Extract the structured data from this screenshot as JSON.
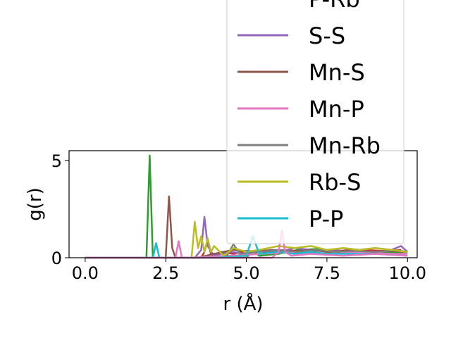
{
  "chart_data": {
    "type": "line",
    "xlabel": "r (Å)",
    "ylabel": "g(r)",
    "xlim": [
      -0.5,
      10.3
    ],
    "ylim": [
      0,
      5.5
    ],
    "xticks": [
      0.0,
      2.5,
      5.0,
      7.5,
      10.0
    ],
    "xtick_labels": [
      "0.0",
      "2.5",
      "5.0",
      "7.5",
      "10.0"
    ],
    "yticks": [
      0,
      5
    ],
    "ytick_labels": [
      "0",
      "5"
    ],
    "legend_position": "upper-right, extending above plot",
    "series": [
      {
        "name": "",
        "color": "#2ca02c",
        "x": [
          0,
          1.8,
          1.9,
          2.0,
          2.1,
          2.2,
          3.0,
          5.0,
          5.2,
          5.4,
          6.0,
          6.6,
          7.2,
          7.6,
          8.2,
          8.8,
          9.4,
          10.0
        ],
        "y": [
          0,
          0,
          0,
          5.25,
          0,
          0,
          0,
          0,
          0.35,
          0.1,
          0.2,
          0.4,
          0.45,
          0.2,
          0.4,
          0.3,
          0.3,
          0.2
        ]
      },
      {
        "name": "P-Rb",
        "color": "#d62728",
        "x": [
          0,
          3.6,
          3.7,
          3.8,
          3.9,
          4.0,
          4.2,
          4.6,
          5.0,
          5.6,
          6.2,
          6.8,
          7.4,
          8.0,
          8.6,
          9.2,
          9.8
        ],
        "y": [
          0,
          0,
          0.3,
          0.9,
          0.2,
          0.1,
          0.3,
          0.2,
          0.35,
          0.3,
          0.4,
          0.3,
          0.4,
          0.3,
          0.4,
          0.35,
          0.4
        ]
      },
      {
        "name": "S-S",
        "color": "#9467bd",
        "x": [
          0,
          3.4,
          3.6,
          3.7,
          3.8,
          4.0,
          4.5,
          5.0,
          5.5,
          6.0,
          6.5,
          7.0,
          7.5,
          8.0,
          8.5,
          9.0,
          9.5,
          9.8,
          10.0
        ],
        "y": [
          0,
          0,
          0.4,
          2.1,
          0.6,
          0.1,
          0.3,
          0.2,
          0.4,
          0.3,
          0.5,
          0.4,
          0.3,
          0.5,
          0.4,
          0.5,
          0.4,
          0.6,
          0.3
        ]
      },
      {
        "name": "Mn-S",
        "color": "#8c564b",
        "x": [
          0,
          2.5,
          2.6,
          2.7,
          2.8,
          3.5,
          4.0,
          4.6,
          5.2,
          5.8,
          6.4,
          7.0,
          7.6,
          8.2,
          8.8,
          9.4,
          10.0
        ],
        "y": [
          0,
          0,
          3.15,
          0.5,
          0,
          0,
          0.2,
          0.4,
          0.3,
          0.4,
          0.3,
          0.4,
          0.3,
          0.4,
          0.3,
          0.35,
          0.3
        ]
      },
      {
        "name": "Mn-P",
        "color": "#e377c2",
        "x": [
          0,
          2.8,
          2.9,
          3.0,
          3.2,
          4.5,
          5.5,
          6.5,
          7.5,
          8.5,
          9.5,
          10.0
        ],
        "y": [
          0,
          0,
          0.85,
          0,
          0,
          0.1,
          0.2,
          0.3,
          0.2,
          0.3,
          0.2,
          0.2
        ]
      },
      {
        "name": "Mn-Rb",
        "color": "#7f7f7f",
        "x": [
          0,
          4.2,
          4.4,
          4.6,
          4.8,
          5.4,
          6.0,
          6.6,
          7.2,
          7.8,
          8.4,
          9.0,
          9.6,
          10.0
        ],
        "y": [
          0,
          0,
          0.1,
          0.7,
          0.2,
          0.3,
          0.4,
          0.3,
          0.4,
          0.3,
          0.35,
          0.3,
          0.4,
          0.3
        ]
      },
      {
        "name": "Rb-S",
        "color": "#bcbd22",
        "x": [
          0,
          3.3,
          3.4,
          3.5,
          3.6,
          3.7,
          3.8,
          3.9,
          4.0,
          4.3,
          4.6,
          5.0,
          5.4,
          6.0,
          6.5,
          7.0,
          7.5,
          8.0,
          8.5,
          9.0,
          9.5,
          10.0
        ],
        "y": [
          0,
          0,
          1.85,
          0.5,
          1.1,
          0.3,
          1.0,
          0.3,
          0.6,
          0.1,
          0.5,
          0.3,
          0.4,
          0.6,
          0.5,
          0.6,
          0.4,
          0.5,
          0.4,
          0.5,
          0.4,
          0.3
        ]
      },
      {
        "name": "P-P",
        "color": "#17becf",
        "x": [
          0,
          2.0,
          2.1,
          2.2,
          2.3,
          4.0,
          5.0,
          5.2,
          5.4,
          6.0,
          6.5,
          7.0,
          7.5,
          8.0,
          9.0,
          10.0
        ],
        "y": [
          0,
          0,
          0,
          0.75,
          0,
          0,
          0.1,
          1.1,
          0.2,
          0.3,
          0.2,
          0.3,
          0.2,
          0.2,
          0.2,
          0.1
        ]
      },
      {
        "name": "",
        "color": "#e377c2",
        "x": [
          0,
          5.8,
          6.0,
          6.1,
          6.2,
          6.4,
          7.0,
          8.0,
          9.0,
          10.0
        ],
        "y": [
          0,
          0,
          0.3,
          1.4,
          0.3,
          0.1,
          0.2,
          0.1,
          0.2,
          0.1
        ]
      }
    ]
  }
}
